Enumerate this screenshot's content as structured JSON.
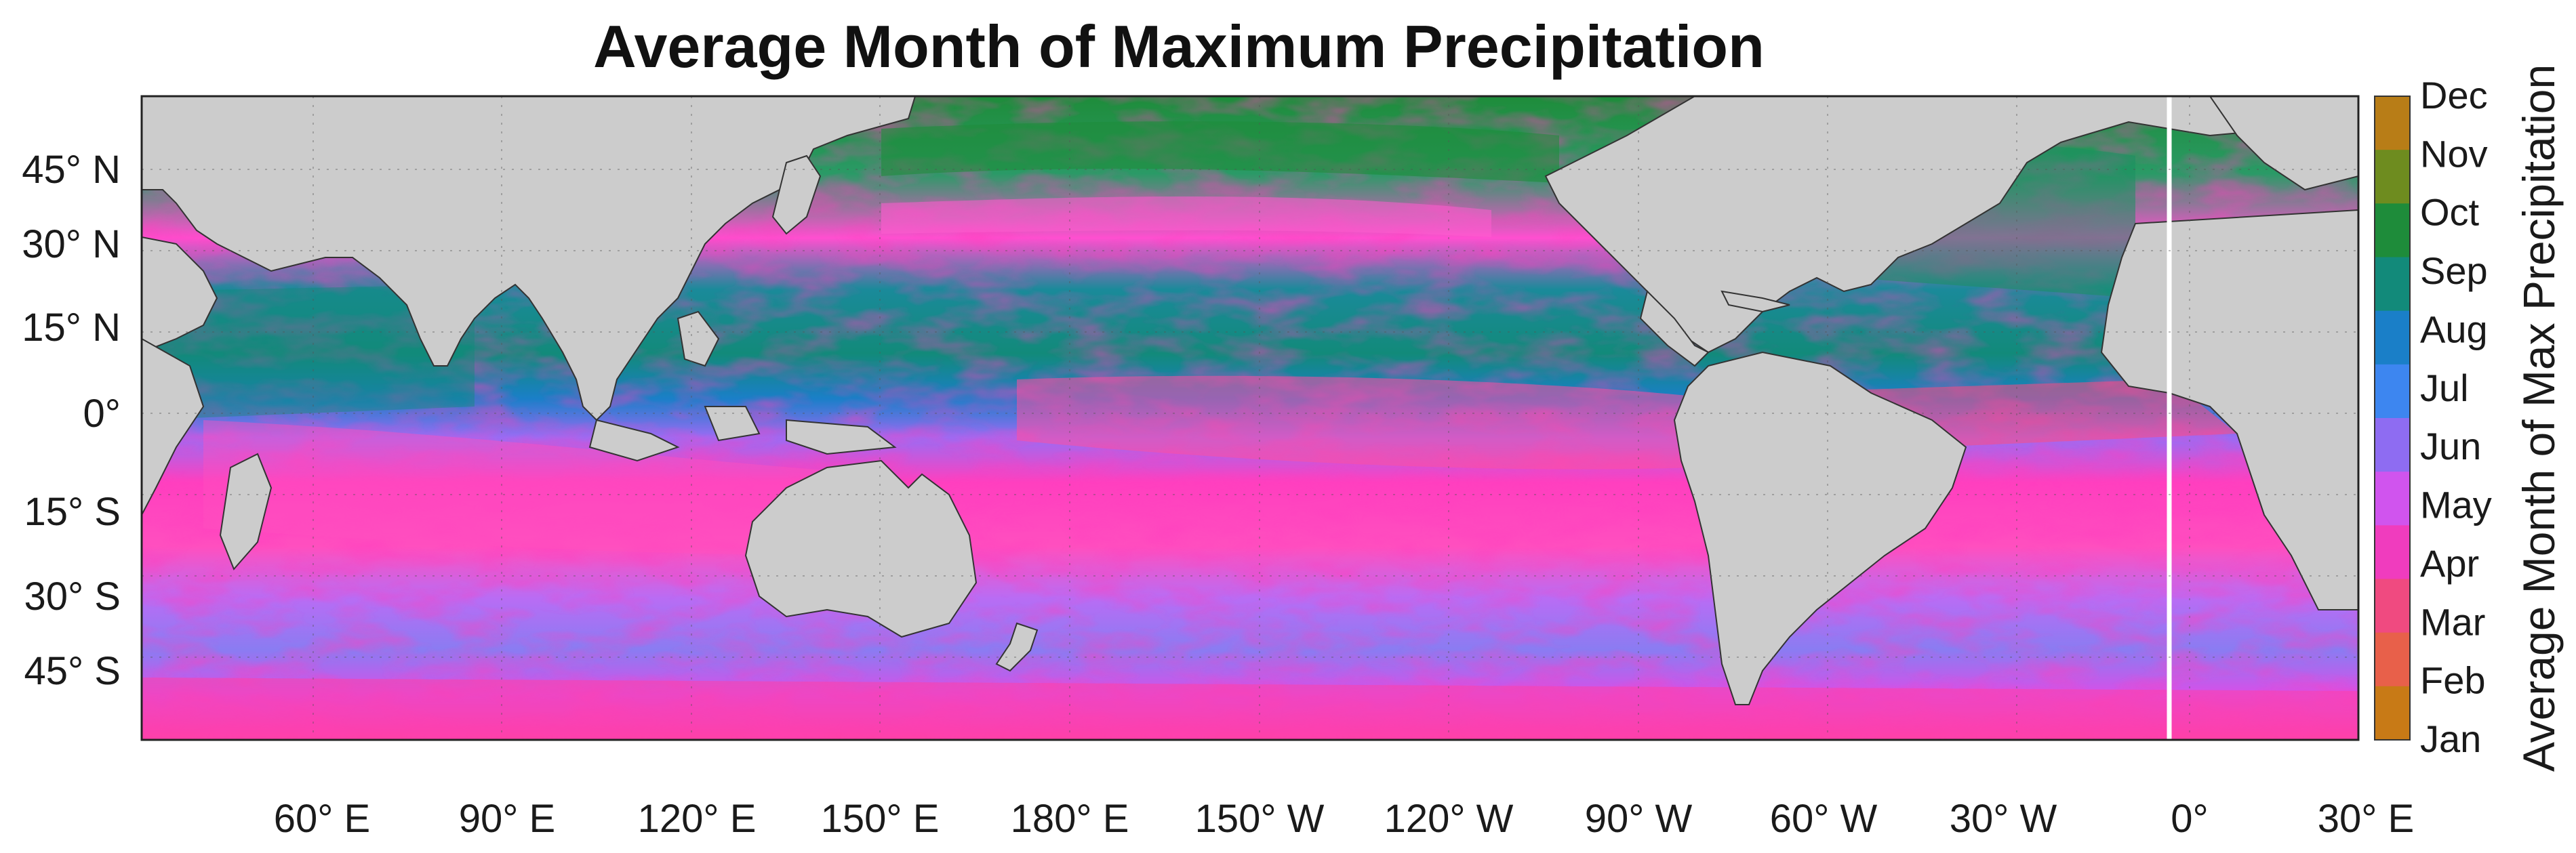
{
  "title": "Average Month of Maximum Precipitation",
  "lat_ticks": [
    "45° N",
    "30° N",
    "15° N",
    "0°",
    "15° S",
    "30° S",
    "45° S"
  ],
  "lon_ticks": [
    "60° E",
    "90° E",
    "120° E",
    "150° E",
    "180° E",
    "150° W",
    "120° W",
    "90° W",
    "60° W",
    "30° W",
    "0°",
    "30° E"
  ],
  "colorbar": {
    "title": "Average Month of Max Precipitation",
    "labels": [
      "Dec",
      "Nov",
      "Oct",
      "Sep",
      "Aug",
      "Jul",
      "Jun",
      "May",
      "Apr",
      "Mar",
      "Feb",
      "Jan"
    ],
    "colors": [
      "#b87d17",
      "#6e8c1f",
      "#1e8c3a",
      "#128a7a",
      "#1a7fc8",
      "#3d86f0",
      "#8e6cf2",
      "#d054ee",
      "#f03cbe",
      "#f04a80",
      "#e8604a",
      "#c87a16"
    ]
  },
  "map": {
    "land_color": "#cccccc",
    "ocean_colors": [
      "#ff3fbf",
      "#e860e0",
      "#9a6cf4",
      "#5b8ff0",
      "#1c8ab8",
      "#129070",
      "#1e8c3a",
      "#ff5c78"
    ]
  }
}
